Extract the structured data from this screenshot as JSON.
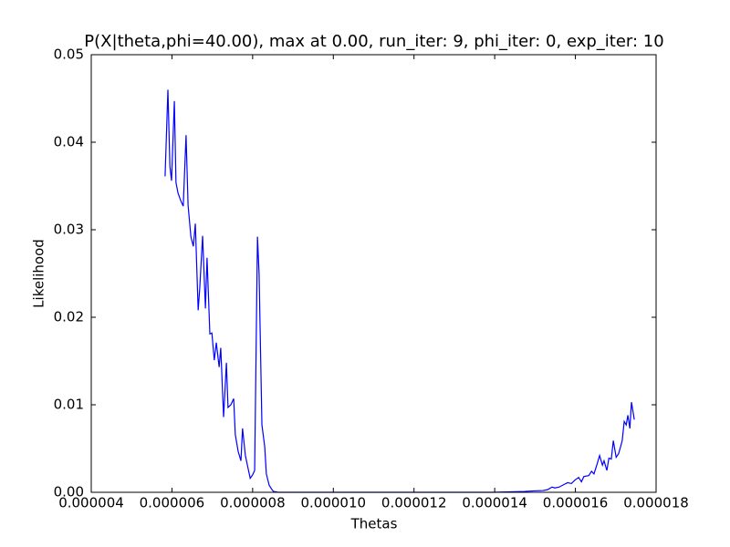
{
  "chart_data": {
    "type": "line",
    "title": "P(X|theta,phi=40.00), max at 0.00, run_iter: 9, phi_iter: 0, exp_iter: 10",
    "x_label": "Thetas",
    "y_label": "Likelihood",
    "xlim": [
      4e-06,
      1.8e-05
    ],
    "xticks": [
      {
        "value": 4e-06,
        "label": "0.000004"
      },
      {
        "value": 6e-06,
        "label": "0.000006"
      },
      {
        "value": 8e-06,
        "label": "0.000008"
      },
      {
        "value": 1e-05,
        "label": "0.000010"
      },
      {
        "value": 1.2e-05,
        "label": "0.000012"
      },
      {
        "value": 1.4e-05,
        "label": "0.000014"
      },
      {
        "value": 1.6e-05,
        "label": "0.000016"
      },
      {
        "value": 1.8e-05,
        "label": "0.000018"
      }
    ],
    "ylim": [
      0,
      0.05
    ],
    "yticks": [
      {
        "value": 0,
        "label": "0.00"
      },
      {
        "value": 0.01,
        "label": "0.01"
      },
      {
        "value": 0.02,
        "label": "0.02"
      },
      {
        "value": 0.03,
        "label": "0.03"
      },
      {
        "value": 0.04,
        "label": "0.04"
      },
      {
        "value": 0.05,
        "label": "0.05"
      }
    ],
    "color": "#0000ff",
    "x": [
      5.83e-06,
      5.9e-06,
      5.95e-06,
      5.99e-06,
      6.06e-06,
      6.1e-06,
      6.15e-06,
      6.22e-06,
      6.28e-06,
      6.35e-06,
      6.4e-06,
      6.47e-06,
      6.53e-06,
      6.58e-06,
      6.65e-06,
      6.69e-06,
      6.76e-06,
      6.83e-06,
      6.87e-06,
      6.94e-06,
      6.99e-06,
      7.05e-06,
      7.1e-06,
      7.17e-06,
      7.21e-06,
      7.28e-06,
      7.35e-06,
      7.39e-06,
      7.46e-06,
      7.53e-06,
      7.57e-06,
      7.64e-06,
      7.71e-06,
      7.75e-06,
      7.82e-06,
      7.87e-06,
      7.94e-06,
      8e-06,
      8.05e-06,
      8.12e-06,
      8.16e-06,
      8.23e-06,
      8.3e-06,
      8.34e-06,
      8.41e-06,
      8.48e-06,
      8.52e-06,
      8.64e-06,
      1.395e-05,
      1.44e-05,
      1.474e-05,
      1.497e-05,
      1.52e-05,
      1.531e-05,
      1.542e-05,
      1.549e-05,
      1.56e-05,
      1.572e-05,
      1.581e-05,
      1.59e-05,
      1.599e-05,
      1.608e-05,
      1.615e-05,
      1.621e-05,
      1.633e-05,
      1.64e-05,
      1.646e-05,
      1.653e-05,
      1.66e-05,
      1.667e-05,
      1.671e-05,
      1.678e-05,
      1.683e-05,
      1.689e-05,
      1.694e-05,
      1.701e-05,
      1.707e-05,
      1.712e-05,
      1.716e-05,
      1.721e-05,
      1.726e-05,
      1.73e-05,
      1.735e-05,
      1.739e-05,
      1.746e-05
    ],
    "values": [
      0.0361,
      0.046,
      0.0372,
      0.0356,
      0.0447,
      0.0354,
      0.0342,
      0.0333,
      0.0327,
      0.0408,
      0.0328,
      0.0292,
      0.0281,
      0.0307,
      0.0208,
      0.0234,
      0.0293,
      0.021,
      0.0268,
      0.0181,
      0.0182,
      0.0151,
      0.0171,
      0.0143,
      0.0165,
      0.0086,
      0.0148,
      0.0097,
      0.01,
      0.0107,
      0.0066,
      0.0047,
      0.0036,
      0.0073,
      0.0042,
      0.0031,
      0.0016,
      0.002,
      0.0025,
      0.0292,
      0.025,
      0.0077,
      0.0052,
      0.0021,
      0.0008,
      0.0003,
      0.0001,
      0,
      0,
      5e-05,
      0.0001,
      0.00016,
      0.0002,
      0.0003,
      0.0006,
      0.0005,
      0.0006,
      0.0009,
      0.0011,
      0.001,
      0.0014,
      0.0017,
      0.0012,
      0.0018,
      0.0019,
      0.0024,
      0.0021,
      0.0031,
      0.0042,
      0.0031,
      0.0036,
      0.0025,
      0.0039,
      0.0038,
      0.0059,
      0.004,
      0.0044,
      0.0052,
      0.0059,
      0.0081,
      0.0077,
      0.0088,
      0.0073,
      0.0103,
      0.0083
    ]
  }
}
